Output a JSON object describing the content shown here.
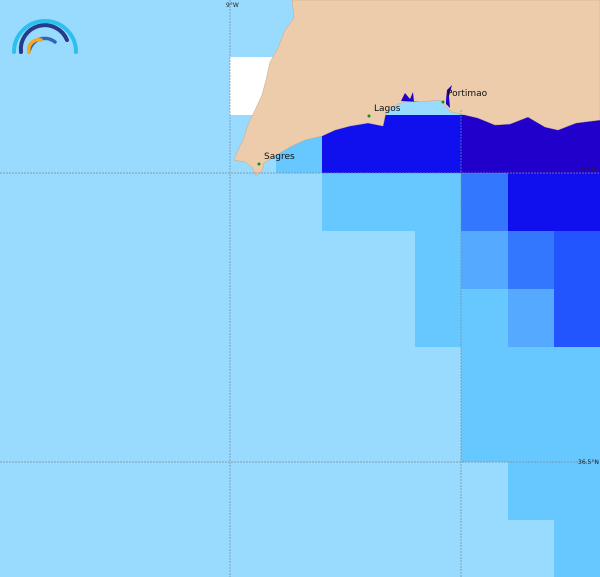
{
  "map": {
    "places": [
      {
        "name": "Sagres"
      },
      {
        "name": "Lagos"
      },
      {
        "name": "Portimao"
      }
    ],
    "grid_labels": {
      "lon": "9°W",
      "lat1": "37°N",
      "lat2": "36.5°N"
    },
    "colors": {
      "land": "#ecccaa",
      "base_water": "#99dbfe",
      "level1": "#66c8fe",
      "level2": "#55aaff",
      "level3": "#3377fe",
      "level4": "#2255fe",
      "level5": "#1010ee",
      "level6": "#2200cc",
      "no_data": "#ffffff"
    },
    "logo": "rainbow-arc-logo"
  }
}
